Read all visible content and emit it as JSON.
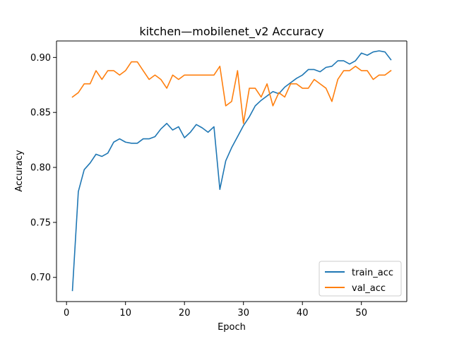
{
  "chart_data": {
    "type": "line",
    "title": "kitchen—mobilenet_v2 Accuracy",
    "xlabel": "Epoch",
    "ylabel": "Accuracy",
    "xlim": [
      -1.7,
      57.7
    ],
    "ylim": [
      0.678,
      0.915
    ],
    "xticks": [
      0,
      10,
      20,
      30,
      40,
      50
    ],
    "yticks": [
      0.7,
      0.75,
      0.8,
      0.85,
      0.9
    ],
    "ytick_labels": [
      "0.70",
      "0.75",
      "0.80",
      "0.85",
      "0.90"
    ],
    "grid": false,
    "legend_position": "lower-right",
    "x": [
      1,
      2,
      3,
      4,
      5,
      6,
      7,
      8,
      9,
      10,
      11,
      12,
      13,
      14,
      15,
      16,
      17,
      18,
      19,
      20,
      21,
      22,
      23,
      24,
      25,
      26,
      27,
      28,
      29,
      30,
      31,
      32,
      33,
      34,
      35,
      36,
      37,
      38,
      39,
      40,
      41,
      42,
      43,
      44,
      45,
      46,
      47,
      48,
      49,
      50,
      51,
      52,
      53,
      54,
      55
    ],
    "series": [
      {
        "name": "train_acc",
        "color": "#1f77b4",
        "values": [
          0.688,
          0.778,
          0.798,
          0.804,
          0.812,
          0.81,
          0.813,
          0.823,
          0.826,
          0.823,
          0.822,
          0.822,
          0.826,
          0.826,
          0.828,
          0.835,
          0.84,
          0.834,
          0.837,
          0.827,
          0.832,
          0.839,
          0.836,
          0.832,
          0.837,
          0.78,
          0.806,
          0.818,
          0.828,
          0.838,
          0.846,
          0.856,
          0.861,
          0.865,
          0.869,
          0.867,
          0.873,
          0.877,
          0.881,
          0.884,
          0.889,
          0.889,
          0.887,
          0.891,
          0.892,
          0.897,
          0.897,
          0.894,
          0.897,
          0.904,
          0.902,
          0.905,
          0.906,
          0.905,
          0.898
        ]
      },
      {
        "name": "val_acc",
        "color": "#ff7f0e",
        "values": [
          0.864,
          0.868,
          0.876,
          0.876,
          0.888,
          0.88,
          0.888,
          0.888,
          0.884,
          0.888,
          0.896,
          0.896,
          0.888,
          0.88,
          0.884,
          0.88,
          0.872,
          0.884,
          0.88,
          0.884,
          0.884,
          0.884,
          0.884,
          0.884,
          0.884,
          0.892,
          0.856,
          0.86,
          0.888,
          0.84,
          0.872,
          0.872,
          0.864,
          0.876,
          0.856,
          0.868,
          0.864,
          0.876,
          0.876,
          0.872,
          0.872,
          0.88,
          0.876,
          0.872,
          0.86,
          0.88,
          0.888,
          0.888,
          0.892,
          0.888,
          0.888,
          0.88,
          0.884,
          0.884,
          0.888
        ]
      }
    ]
  }
}
